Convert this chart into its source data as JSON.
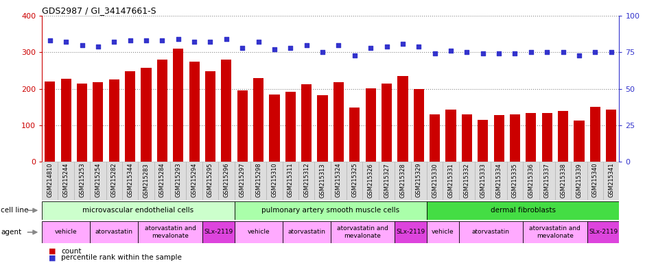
{
  "title": "GDS2987 / GI_34147661-S",
  "samples": [
    "GSM214810",
    "GSM215244",
    "GSM215253",
    "GSM215254",
    "GSM215282",
    "GSM215344",
    "GSM215283",
    "GSM215284",
    "GSM215293",
    "GSM215294",
    "GSM215295",
    "GSM215296",
    "GSM215297",
    "GSM215298",
    "GSM215310",
    "GSM215311",
    "GSM215312",
    "GSM215313",
    "GSM215324",
    "GSM215325",
    "GSM215326",
    "GSM215327",
    "GSM215328",
    "GSM215329",
    "GSM215330",
    "GSM215331",
    "GSM215332",
    "GSM215333",
    "GSM215334",
    "GSM215335",
    "GSM215336",
    "GSM215337",
    "GSM215338",
    "GSM215339",
    "GSM215340",
    "GSM215341"
  ],
  "counts": [
    220,
    228,
    215,
    218,
    225,
    248,
    258,
    280,
    310,
    275,
    248,
    280,
    195,
    230,
    185,
    192,
    213,
    183,
    218,
    148,
    202,
    215,
    235,
    200,
    130,
    143,
    130,
    115,
    128,
    130,
    133,
    133,
    140,
    112,
    150,
    143
  ],
  "percentiles": [
    83,
    82,
    80,
    79,
    82,
    83,
    83,
    83,
    84,
    82,
    82,
    84,
    78,
    82,
    77,
    78,
    80,
    75,
    80,
    73,
    78,
    79,
    81,
    79,
    74,
    76,
    75,
    74,
    74,
    74,
    75,
    75,
    75,
    73,
    75,
    75
  ],
  "bar_color": "#cc0000",
  "dot_color": "#3333cc",
  "ylim_left": [
    0,
    400
  ],
  "ylim_right": [
    0,
    100
  ],
  "yticks_left": [
    0,
    100,
    200,
    300,
    400
  ],
  "yticks_right": [
    0,
    25,
    50,
    75,
    100
  ],
  "cell_line_groups": [
    {
      "label": "microvascular endothelial cells",
      "start": 0,
      "end": 11,
      "color": "#ccffcc"
    },
    {
      "label": "pulmonary artery smooth muscle cells",
      "start": 12,
      "end": 23,
      "color": "#aaffaa"
    },
    {
      "label": "dermal fibroblasts",
      "start": 24,
      "end": 35,
      "color": "#44dd44"
    }
  ],
  "agent_groups": [
    {
      "label": "vehicle",
      "start": 0,
      "end": 2,
      "color": "#ffaaff"
    },
    {
      "label": "atorvastatin",
      "start": 3,
      "end": 5,
      "color": "#ffaaff"
    },
    {
      "label": "atorvastatin and\nmevalonate",
      "start": 6,
      "end": 9,
      "color": "#ffaaff"
    },
    {
      "label": "SLx-2119",
      "start": 10,
      "end": 11,
      "color": "#dd44dd"
    },
    {
      "label": "vehicle",
      "start": 12,
      "end": 14,
      "color": "#ffaaff"
    },
    {
      "label": "atorvastatin",
      "start": 15,
      "end": 17,
      "color": "#ffaaff"
    },
    {
      "label": "atorvastatin and\nmevalonate",
      "start": 18,
      "end": 21,
      "color": "#ffaaff"
    },
    {
      "label": "SLx-2119",
      "start": 22,
      "end": 23,
      "color": "#dd44dd"
    },
    {
      "label": "vehicle",
      "start": 24,
      "end": 25,
      "color": "#ffaaff"
    },
    {
      "label": "atorvastatin",
      "start": 26,
      "end": 29,
      "color": "#ffaaff"
    },
    {
      "label": "atorvastatin and\nmevalonate",
      "start": 30,
      "end": 33,
      "color": "#ffaaff"
    },
    {
      "label": "SLx-2119",
      "start": 34,
      "end": 35,
      "color": "#dd44dd"
    }
  ],
  "legend_items": [
    {
      "label": "count",
      "color": "#cc0000"
    },
    {
      "label": "percentile rank within the sample",
      "color": "#3333cc"
    }
  ],
  "background_color": "#ffffff",
  "grid_color": "#888888",
  "xticklabel_bg": "#dddddd"
}
